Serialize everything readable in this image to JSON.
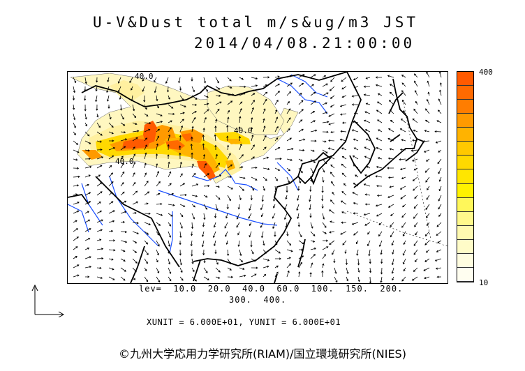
{
  "title": {
    "line1": "U-V&Dust total m/s&ug/m3 JST",
    "line2": "2014/04/08.21:00:00"
  },
  "colorbar": {
    "max_label": "400",
    "min_label": "10",
    "colors": [
      "#ff5a00",
      "#ff6a00",
      "#ff7d00",
      "#ff9a00",
      "#ffb300",
      "#ffc800",
      "#ffd900",
      "#ffe600",
      "#fff200",
      "#fff75a",
      "#fff98c",
      "#fffab0",
      "#fffcc8",
      "#fffde0",
      "#fffef0"
    ]
  },
  "contour_labels": [
    "40.0",
    "40.0",
    "40.0"
  ],
  "legend": {
    "levels_line1": "lev=  10.0  20.0  40.0  60.0  100.  150.  200.",
    "levels_line2": "300.  400."
  },
  "units": "XUNIT = 6.000E+01, YUNIT = 6.000E+01",
  "copyright": "©九州大学応用力学研究所(RIAM)/国立環境研究所(NIES)",
  "map_colors": {
    "coast": "#000000",
    "river": "#1a4fff",
    "dust_low": "#fff7c0",
    "dust_mid": "#ffc800",
    "dust_high": "#ff5a00"
  }
}
